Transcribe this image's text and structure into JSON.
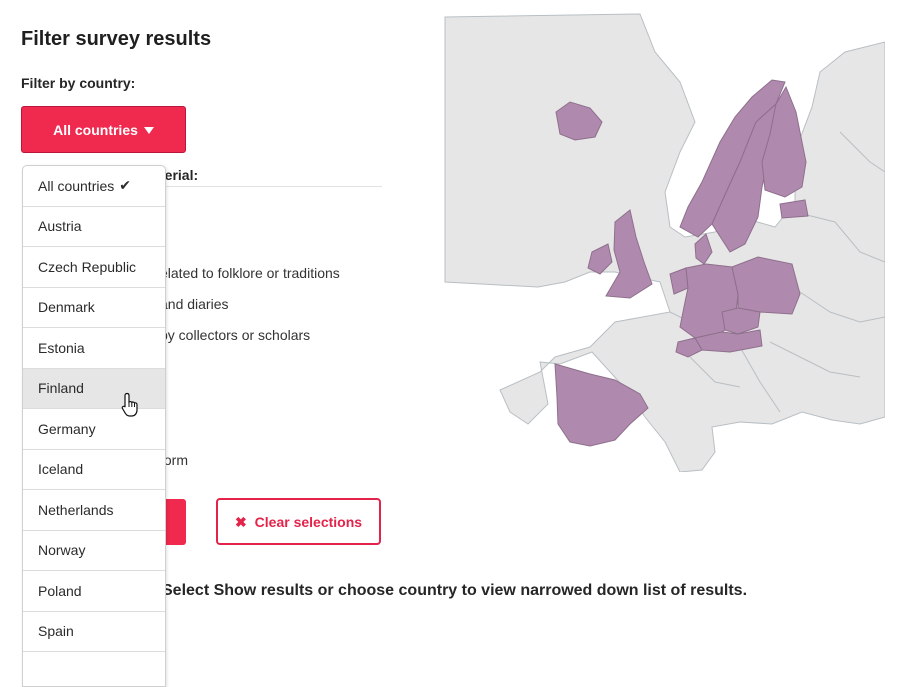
{
  "page": {
    "title": "Filter survey results",
    "filter_label": "Filter by country:",
    "material_label": "terial:",
    "options": [
      "elated to folklore or traditions",
      "and diaries",
      "by collectors or scholars",
      "form"
    ],
    "clear_label": "Clear selections",
    "hint": "Select Show results or choose country to view narrowed down list of results."
  },
  "country_filter": {
    "selected_label": "All countries",
    "items": [
      {
        "label": "All countries",
        "checked": true
      },
      {
        "label": "Austria"
      },
      {
        "label": "Czech Republic"
      },
      {
        "label": "Denmark"
      },
      {
        "label": "Estonia"
      },
      {
        "label": "Finland",
        "hovered": true
      },
      {
        "label": "Germany"
      },
      {
        "label": "Iceland"
      },
      {
        "label": "Netherlands"
      },
      {
        "label": "Norway"
      },
      {
        "label": "Poland"
      },
      {
        "label": "Spain"
      }
    ]
  },
  "map": {
    "highlighted_countries": [
      "Iceland",
      "Norway",
      "Sweden",
      "Finland",
      "Estonia",
      "Denmark",
      "Netherlands",
      "Germany",
      "Poland",
      "Czech Republic",
      "Austria",
      "Switzerland",
      "Ireland",
      "United Kingdom",
      "Spain"
    ],
    "highlight_color": "#b08aae",
    "base_color": "#e6e6e6"
  },
  "colors": {
    "accent": "#f0294f",
    "accent_border": "#e3234a"
  },
  "icons": {
    "caret": "caret-down-icon",
    "check": "check-icon",
    "clear": "close-icon",
    "cursor": "hand-pointer-icon"
  }
}
